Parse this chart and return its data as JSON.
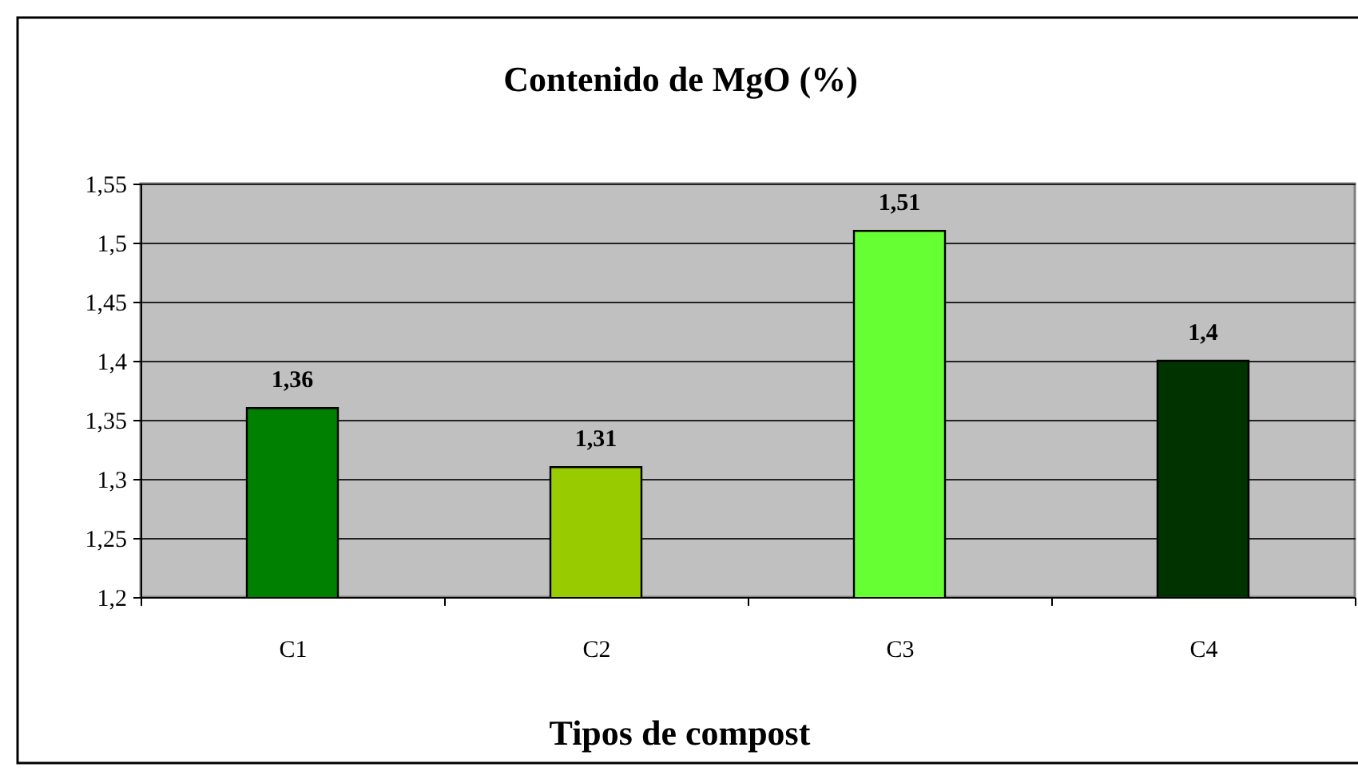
{
  "chart_data": {
    "type": "bar",
    "title": "Contenido de MgO (%)",
    "xlabel": "Tipos de compost",
    "categories": [
      "C1",
      "C2",
      "C3",
      "C4"
    ],
    "values": [
      1.36,
      1.31,
      1.51,
      1.4
    ],
    "colors": [
      "#008000",
      "#99cc00",
      "#66ff33",
      "#003300"
    ],
    "value_labels": [
      "1,36",
      "1,31",
      "1,51",
      "1,4"
    ],
    "ylim": [
      1.2,
      1.55
    ],
    "yticks": [
      {
        "value": 1.2,
        "label": "1,2"
      },
      {
        "value": 1.25,
        "label": "1,25"
      },
      {
        "value": 1.3,
        "label": "1,3"
      },
      {
        "value": 1.35,
        "label": "1,35"
      },
      {
        "value": 1.4,
        "label": "1,4"
      },
      {
        "value": 1.45,
        "label": "1,45"
      },
      {
        "value": 1.5,
        "label": "1,5"
      },
      {
        "value": 1.55,
        "label": "1,55"
      }
    ],
    "grid": "y"
  }
}
